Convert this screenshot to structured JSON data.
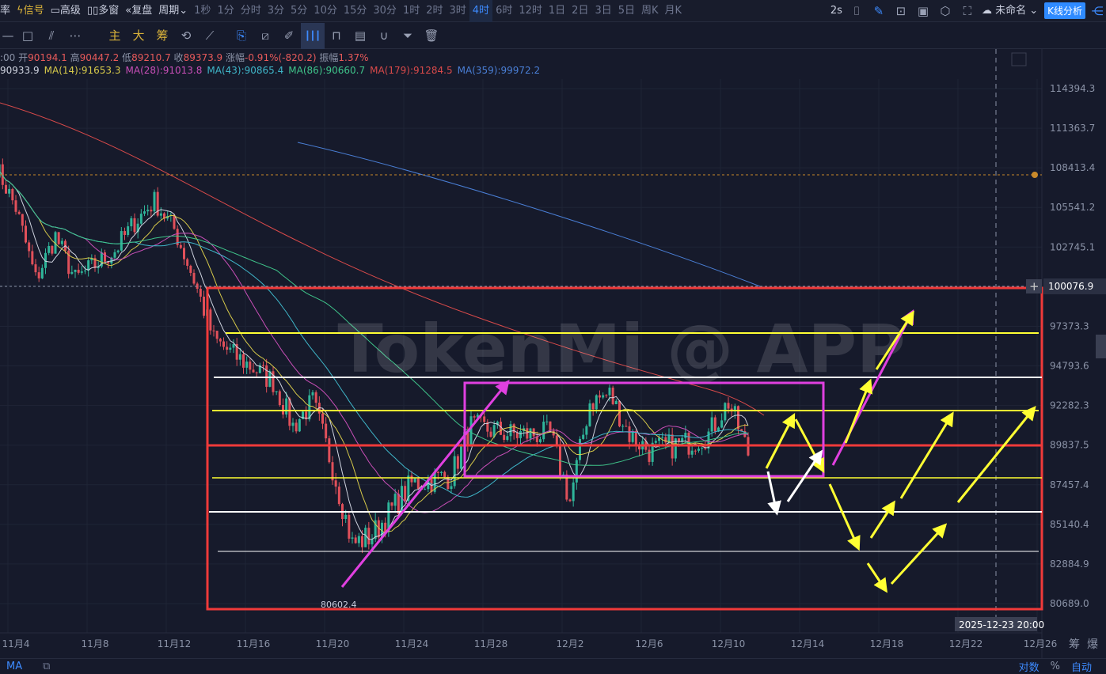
{
  "top": {
    "left_cut": "率",
    "items": [
      {
        "label": "信号",
        "icon": "lightning-icon",
        "color": "#d9b23a"
      },
      {
        "label": "高级",
        "icon": "panel-icon"
      },
      {
        "label": "多窗",
        "icon": "grid-icon"
      },
      {
        "label": "复盘",
        "icon": "rewind-icon"
      },
      {
        "label": "周期",
        "icon": "chevron-down-icon"
      }
    ],
    "periods": [
      "1秒",
      "1分",
      "分时",
      "3分",
      "5分",
      "10分",
      "15分",
      "30分",
      "1时",
      "2时",
      "3时",
      "4时",
      "6时",
      "12时",
      "1日",
      "2日",
      "3日",
      "5日",
      "周K",
      "月K"
    ],
    "active_period": "4时",
    "refresh": "2s",
    "layout_name": "未命名",
    "analysis_button": "K线分析"
  },
  "tools": {
    "items": [
      "主",
      "大",
      "筹"
    ]
  },
  "info": {
    "time_cut": ":00",
    "open_label": "开",
    "open": "90194.1",
    "high_label": "高",
    "high": "90447.2",
    "low_label": "低",
    "low": "89210.7",
    "close_label": "收",
    "close": "89373.9",
    "change_label": "涨幅",
    "change": "-0.91%(-820.2)",
    "amp_label": "振幅",
    "amp": "1.37%"
  },
  "ma": [
    {
      "label": "90933.9",
      "color": "#d0d4e0"
    },
    {
      "label": "MA(14):91653.3",
      "color": "#d6c94a"
    },
    {
      "label": "MA(28):91013.8",
      "color": "#c94fb8"
    },
    {
      "label": "MA(43):90865.4",
      "color": "#3fb6c9"
    },
    {
      "label": "MA(86):90660.7",
      "color": "#3fc48a"
    },
    {
      "label": "MA(179):91284.5",
      "color": "#d94a4a"
    },
    {
      "label": "MA(359):99972.2",
      "color": "#4a7fd6"
    }
  ],
  "price_axis": [
    "114394.3",
    "111363.7",
    "108413.4",
    "105541.2",
    "102745.1",
    "100076.9",
    "97373.3",
    "94793.6",
    "92282.3",
    "89837.5",
    "87457.4",
    "85140.4",
    "82884.9",
    "80689.0"
  ],
  "highlight_price": "100076.9",
  "date_axis": [
    "11月4",
    "11月8",
    "11月12",
    "11月16",
    "11月20",
    "11月24",
    "11月28",
    "12月2",
    "12月6",
    "12月10",
    "12月14",
    "12月18",
    "12月22",
    "12月26"
  ],
  "crosshair_date": "2025-12-23 20:00",
  "axis_right": [
    "筹",
    "爆"
  ],
  "low_marker": "80602.4",
  "watermark": "TokenMi @ APP",
  "bottom": {
    "ma": "MA",
    "log": "对数",
    "pct": "%",
    "auto": "自动"
  },
  "colors": {
    "up": "#2fb59a",
    "down": "#e0505a",
    "accent": "#2f8bff"
  },
  "chart_data": {
    "type": "candlestick",
    "interval": "4h",
    "scale": "log",
    "ylim": [
      80689.0,
      114394.3
    ],
    "anchors": [
      [
        "11-03",
        108500
      ],
      [
        "11-04",
        105500
      ],
      [
        "11-05",
        100500
      ],
      [
        "11-06",
        103500
      ],
      [
        "11-07",
        100500
      ],
      [
        "11-09",
        102500
      ],
      [
        "11-10",
        104500
      ],
      [
        "11-11",
        106000
      ],
      [
        "11-12",
        104000
      ],
      [
        "11-13",
        100500
      ],
      [
        "11-14",
        96500
      ],
      [
        "11-15",
        95500
      ],
      [
        "11-17",
        93800
      ],
      [
        "11-18",
        91000
      ],
      [
        "11-19",
        92500
      ],
      [
        "11-20",
        88500
      ],
      [
        "11-21",
        84000
      ],
      [
        "11-22",
        84500
      ],
      [
        "11-24",
        87500
      ],
      [
        "11-26",
        88000
      ],
      [
        "11-27",
        91000
      ],
      [
        "11-29",
        90500
      ],
      [
        "12-01",
        90500
      ],
      [
        "12-02",
        86500
      ],
      [
        "12-03",
        92500
      ],
      [
        "12-04",
        93000
      ],
      [
        "12-05",
        90500
      ],
      [
        "12-06",
        89500
      ],
      [
        "12-08",
        90000
      ],
      [
        "12-09",
        90500
      ],
      [
        "12-10",
        92500
      ],
      [
        "12-11",
        89374
      ]
    ],
    "low": 80602.4
  }
}
